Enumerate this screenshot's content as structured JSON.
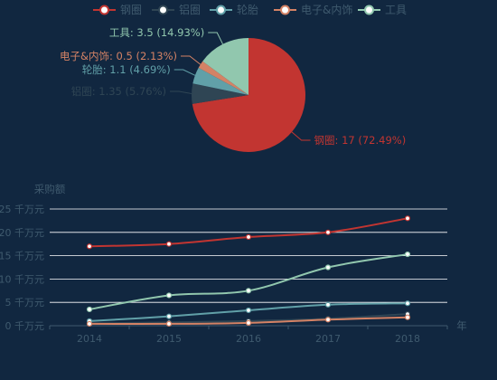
{
  "colors": {
    "background": "#112740",
    "steel": "#c23531",
    "aluminum": "#2f4554",
    "tire": "#61a0a8",
    "electronics": "#d48265",
    "tools": "#91c7ae",
    "grid": "#ffffff",
    "axis_text": "#3f5a6e"
  },
  "chart_data": [
    {
      "type": "pie",
      "legend_placement": "top-center",
      "legend": [
        "钢圈",
        "铝圈",
        "轮胎",
        "电子&内饰",
        "工具"
      ],
      "slices": [
        {
          "name": "钢圈",
          "value": 17,
          "percent": "72.49%",
          "label": "钢圈: 17 (72.49%)",
          "color": "#c23531"
        },
        {
          "name": "铝圈",
          "value": 1.35,
          "percent": "5.76%",
          "label": "铝圈: 1.35 (5.76%)",
          "color": "#2f4554"
        },
        {
          "name": "轮胎",
          "value": 1.1,
          "percent": "4.69%",
          "label": "轮胎: 1.1 (4.69%)",
          "color": "#61a0a8"
        },
        {
          "name": "电子&内饰",
          "value": 0.5,
          "percent": "2.13%",
          "label": "电子&内饰: 0.5 (2.13%)",
          "color": "#d48265"
        },
        {
          "name": "工具",
          "value": 3.5,
          "percent": "14.93%",
          "label": "工具: 3.5 (14.93%)",
          "color": "#91c7ae"
        }
      ]
    },
    {
      "type": "line",
      "ylabel": "采购额",
      "xlabel": "年",
      "categories": [
        "2014",
        "2015",
        "2016",
        "2017",
        "2018"
      ],
      "ylim": [
        0,
        25
      ],
      "y_ticks": [
        {
          "value": 0,
          "label": "0 千万元"
        },
        {
          "value": 5,
          "label": "5 千万元"
        },
        {
          "value": 10,
          "label": "10 千万元"
        },
        {
          "value": 15,
          "label": "15 千万元"
        },
        {
          "value": 20,
          "label": "20 千万元"
        },
        {
          "value": 25,
          "label": "25 千万元"
        }
      ],
      "grid": true,
      "smooth": true,
      "series": [
        {
          "name": "钢圈",
          "color": "#c23531",
          "values": [
            17,
            17.5,
            19,
            20,
            23
          ]
        },
        {
          "name": "铝圈",
          "color": "#2f4554",
          "values": [
            0.5,
            0.7,
            1.0,
            1.5,
            2.5
          ]
        },
        {
          "name": "轮胎",
          "color": "#61a0a8",
          "values": [
            1.0,
            2.0,
            3.3,
            4.5,
            4.8
          ]
        },
        {
          "name": "电子&内饰",
          "color": "#d48265",
          "values": [
            0.4,
            0.4,
            0.6,
            1.3,
            1.8
          ]
        },
        {
          "name": "工具",
          "color": "#91c7ae",
          "values": [
            3.5,
            6.5,
            7.5,
            12.5,
            15.3
          ]
        }
      ]
    }
  ]
}
